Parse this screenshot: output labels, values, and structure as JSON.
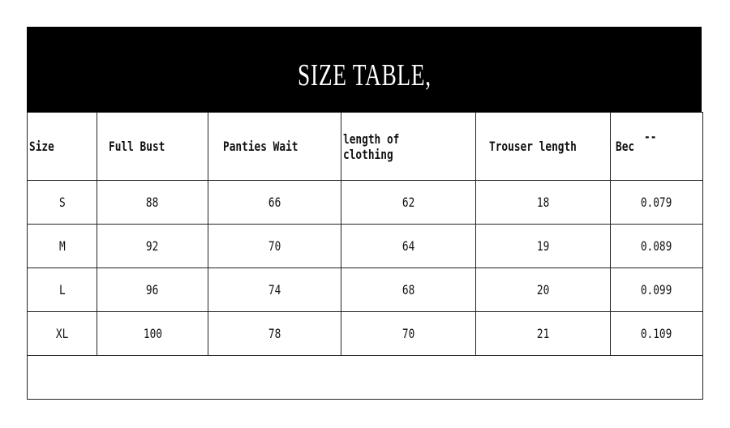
{
  "title": "SIZE TABLE,",
  "columns": [
    "Size",
    "Full Bust",
    "Panties Wait",
    "length of clothing",
    "Trouser length",
    "Bec"
  ],
  "bec_mark": "--",
  "rows": [
    [
      "S",
      "88",
      "66",
      "62",
      "18",
      "0.079"
    ],
    [
      "M",
      "92",
      "70",
      "64",
      "19",
      "0.089"
    ],
    [
      "L",
      "96",
      "74",
      "68",
      "20",
      "0.099"
    ],
    [
      "XL",
      "100",
      "78",
      "70",
      "21",
      "0.109"
    ]
  ]
}
